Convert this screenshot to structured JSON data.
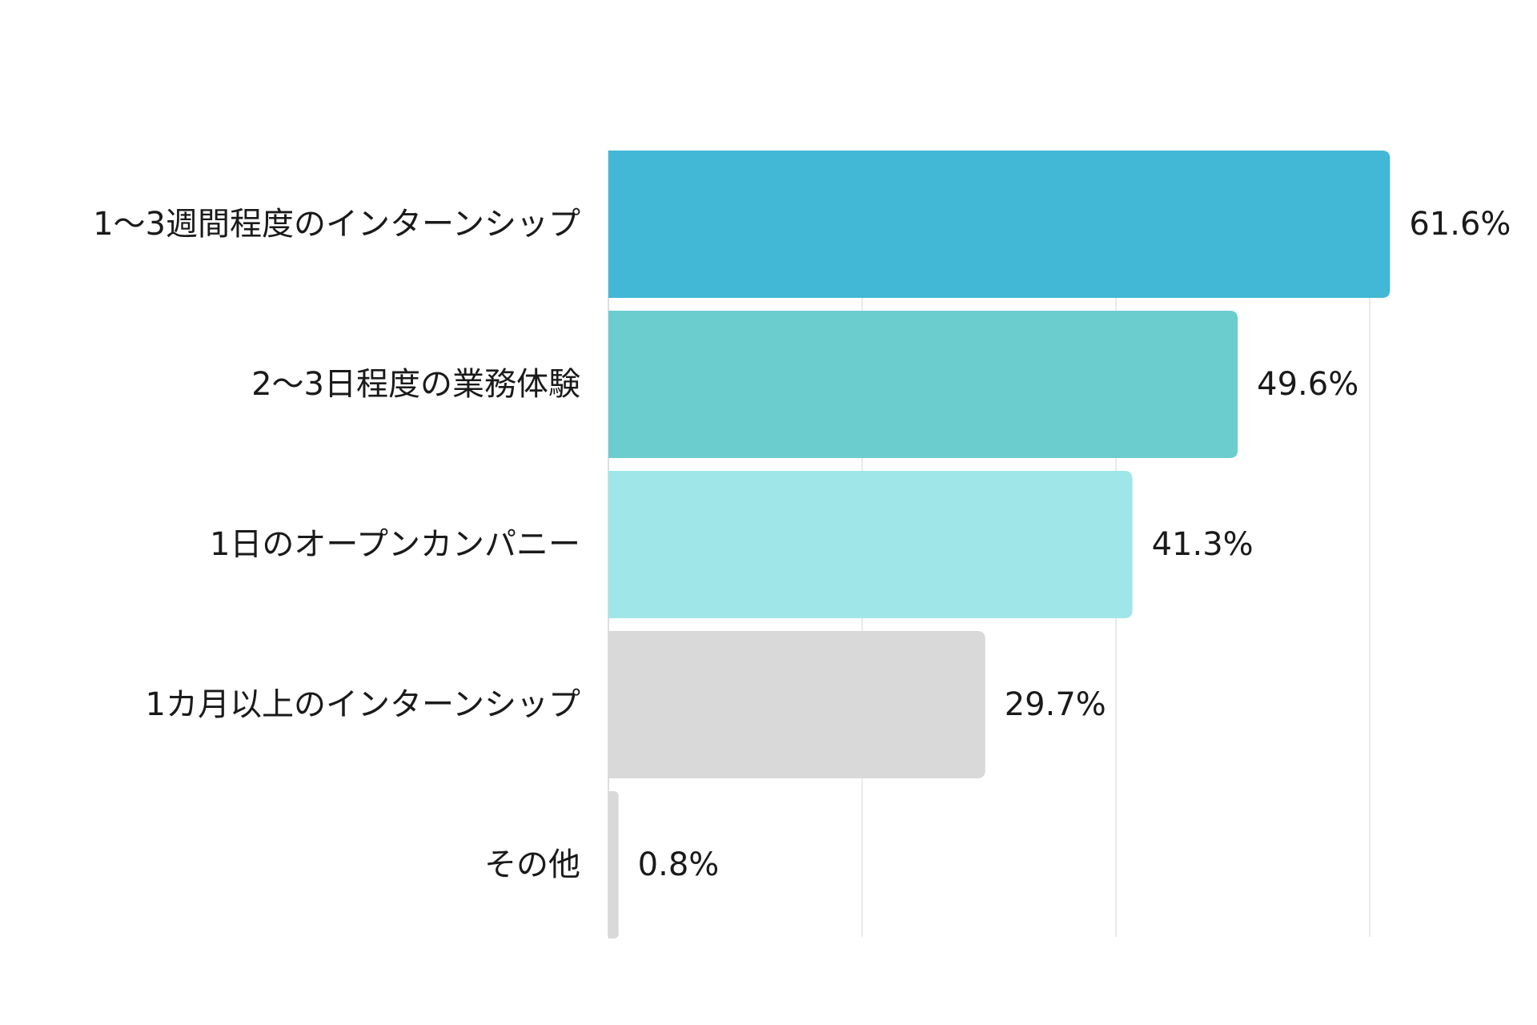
{
  "chart_data": {
    "type": "bar",
    "orientation": "horizontal",
    "categories": [
      "1〜3週間程度のインターンシップ",
      "2〜3日程度の業務体験",
      "1日のオープンカンパニー",
      "1カ月以上のインターンシップ",
      "その他"
    ],
    "values": [
      61.6,
      49.6,
      41.3,
      29.7,
      0.8
    ],
    "value_labels": [
      "61.6%",
      "49.6%",
      "41.3%",
      "29.7%",
      "0.8%"
    ],
    "colors": [
      "#42B8D6",
      "#6CCDCF",
      "#9FE6E8",
      "#D9D9D9",
      "#D9D9D9"
    ],
    "xlim": [
      0,
      60
    ],
    "x_gridlines": [
      0,
      20,
      40,
      60
    ],
    "grid": true,
    "title": "",
    "xlabel": "",
    "ylabel": ""
  }
}
